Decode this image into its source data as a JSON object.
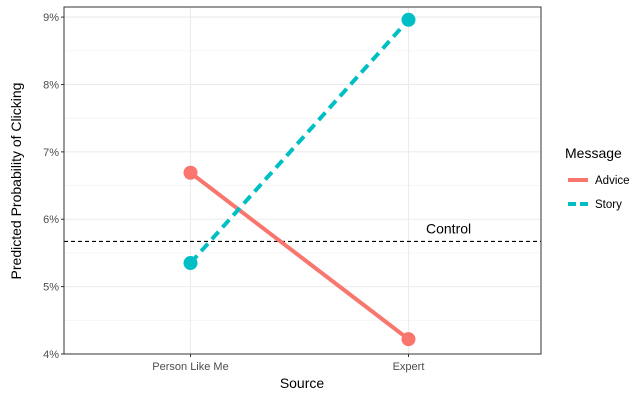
{
  "chart_data": {
    "type": "line",
    "xlabel": "Source",
    "ylabel": "Predicted Probability of Clicking",
    "categories": [
      "Person Like Me",
      "Expert"
    ],
    "ylim": [
      0.04,
      0.0915
    ],
    "y_ticks": [
      0.04,
      0.05,
      0.06,
      0.07,
      0.08,
      0.09
    ],
    "y_tick_labels": [
      "4%",
      "5%",
      "6%",
      "7%",
      "8%",
      "9%"
    ],
    "grid": true,
    "legend_position": "right",
    "legend_title": "Message",
    "series": [
      {
        "name": "Advice",
        "values": [
          0.0669,
          0.0422
        ],
        "color": "#F8766D",
        "dash": "solid"
      },
      {
        "name": "Story",
        "values": [
          0.0535,
          0.0896
        ],
        "color": "#00BFC4",
        "dash": "dashed"
      }
    ],
    "reference_line": {
      "label": "Control",
      "value": 0.0567,
      "color": "#000000",
      "dash": "dashed"
    }
  }
}
